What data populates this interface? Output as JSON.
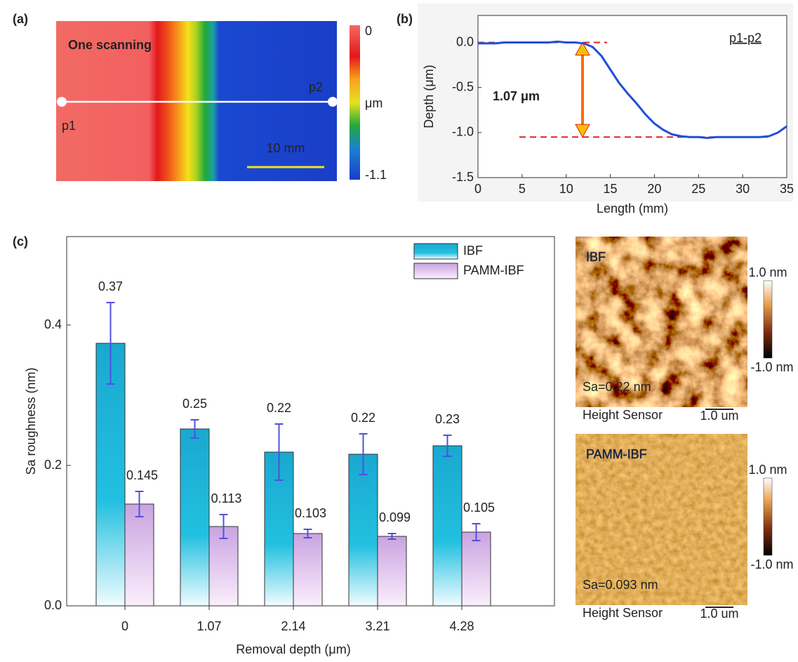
{
  "chart_data": [
    {
      "type": "map",
      "panel": "(a)",
      "annotation": "One scanning",
      "points": [
        "p1",
        "p2"
      ],
      "scale_bar": "10 mm",
      "colorbar": {
        "label": "μm",
        "lim": [
          -1.1,
          0
        ],
        "ticks": [
          0,
          -1.1
        ]
      }
    },
    {
      "type": "line",
      "panel": "(b)",
      "xlabel": "Length (mm)",
      "ylabel": "Depth (μm)",
      "annotation": "1.07 μm",
      "x": [
        0,
        1,
        2,
        3,
        4,
        5,
        6,
        7,
        8,
        9,
        10,
        11,
        12,
        13,
        14,
        15,
        16,
        17,
        18,
        19,
        20,
        21,
        22,
        23,
        24,
        25,
        26,
        27,
        28,
        29,
        30,
        31,
        32,
        33,
        34,
        35
      ],
      "series": [
        {
          "name": "p1-p2",
          "color": "#1f4fd8",
          "values": [
            -0.01,
            -0.01,
            -0.01,
            0,
            0,
            0,
            0,
            0,
            0,
            0.01,
            0,
            0,
            -0.01,
            -0.05,
            -0.15,
            -0.3,
            -0.45,
            -0.57,
            -0.68,
            -0.8,
            -0.9,
            -0.97,
            -1.02,
            -1.04,
            -1.05,
            -1.05,
            -1.06,
            -1.05,
            -1.05,
            -1.05,
            -1.05,
            -1.05,
            -1.05,
            -1.04,
            -1.0,
            -0.93
          ]
        }
      ],
      "reference_lines": [
        0,
        -1.05
      ],
      "reference_color": "#e02020",
      "xlim": [
        0,
        35
      ],
      "ylim": [
        -1.5,
        0.3
      ],
      "xticks": [
        0,
        5,
        10,
        15,
        20,
        25,
        30,
        35
      ],
      "yticks": [
        {
          "value": 0,
          "label": "0.0"
        },
        -0.5,
        {
          "value": -1,
          "label": "-1.0"
        },
        -1.5
      ]
    },
    {
      "type": "bar",
      "panel": "(c)",
      "xlabel": "Removal depth (μm)",
      "ylabel": "Sa roughness (nm)",
      "categories": [
        "0",
        "1.07",
        "2.14",
        "3.21",
        "4.28"
      ],
      "series": [
        {
          "name": "IBF",
          "color": "#1aa8d0",
          "values": [
            0.374,
            0.252,
            0.219,
            0.216,
            0.228
          ],
          "value_labels": [
            "0.37",
            "0.25",
            "0.22",
            "0.22",
            "0.23"
          ],
          "errors": [
            0.058,
            0.013,
            0.04,
            0.029,
            0.015
          ]
        },
        {
          "name": "PAMM-IBF",
          "color": "#c9a3e0",
          "values": [
            0.145,
            0.113,
            0.103,
            0.099,
            0.105
          ],
          "errors": [
            0.018,
            0.017,
            0.006,
            0.004,
            0.012
          ]
        }
      ],
      "error_color": "#5050e0",
      "legend": "top-right",
      "ylim": [
        0,
        0.526
      ],
      "yticks": [
        {
          "value": 0,
          "label": "0.0"
        },
        0.2,
        0.4
      ]
    }
  ],
  "afm_images": [
    {
      "label": "IBF",
      "sa": "Sa=0.22 nm",
      "scale_max": "1.0 nm",
      "scale_min": "-1.0 nm",
      "sensor": "Height Sensor",
      "scale_bar": "1.0 um"
    },
    {
      "label": "PAMM-IBF",
      "sa": "Sa=0.093 nm",
      "scale_max": "1.0 nm",
      "scale_min": "-1.0 nm",
      "sensor": "Height Sensor",
      "scale_bar": "1.0 um"
    }
  ]
}
